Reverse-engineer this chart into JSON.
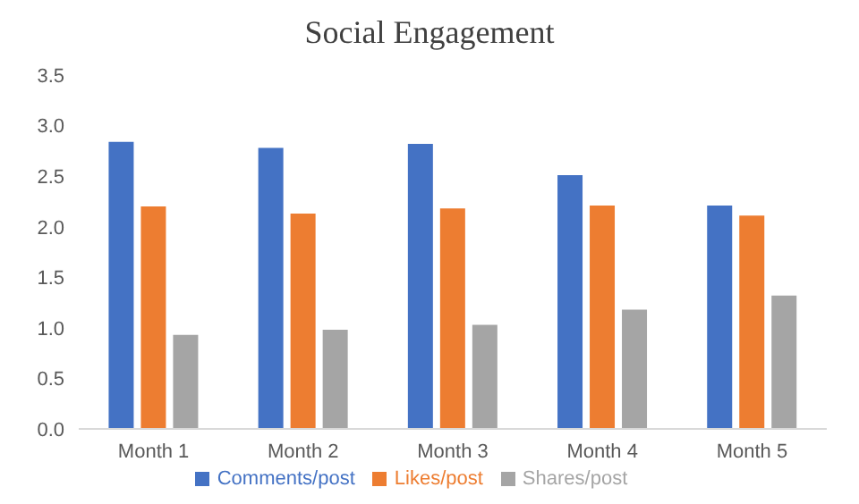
{
  "chart_data": {
    "type": "bar",
    "title": "Social Engagement",
    "categories": [
      "Month 1",
      "Month 2",
      "Month 3",
      "Month 4",
      "Month 5"
    ],
    "series": [
      {
        "name": "Comments/post",
        "color": "#4472c4",
        "values": [
          2.84,
          2.78,
          2.82,
          2.51,
          2.21
        ]
      },
      {
        "name": "Likes/post",
        "color": "#ed7d31",
        "values": [
          2.2,
          2.13,
          2.18,
          2.21,
          2.11
        ]
      },
      {
        "name": "Shares/post",
        "color": "#a5a5a5",
        "values": [
          0.93,
          0.98,
          1.03,
          1.18,
          1.32
        ]
      }
    ],
    "ylim": [
      0,
      3.5
    ],
    "yticks": [
      {
        "value": 0,
        "label": "0.0"
      },
      {
        "value": 0.5,
        "label": "0.5"
      },
      {
        "value": 1,
        "label": "1.0"
      },
      {
        "value": 1.5,
        "label": "1.5"
      },
      {
        "value": 2,
        "label": "2.0"
      },
      {
        "value": 2.5,
        "label": "2.5"
      },
      {
        "value": 3,
        "label": "3.0"
      },
      {
        "value": 3.5,
        "label": "3.5"
      }
    ],
    "grid": false,
    "legend": "bottom"
  }
}
